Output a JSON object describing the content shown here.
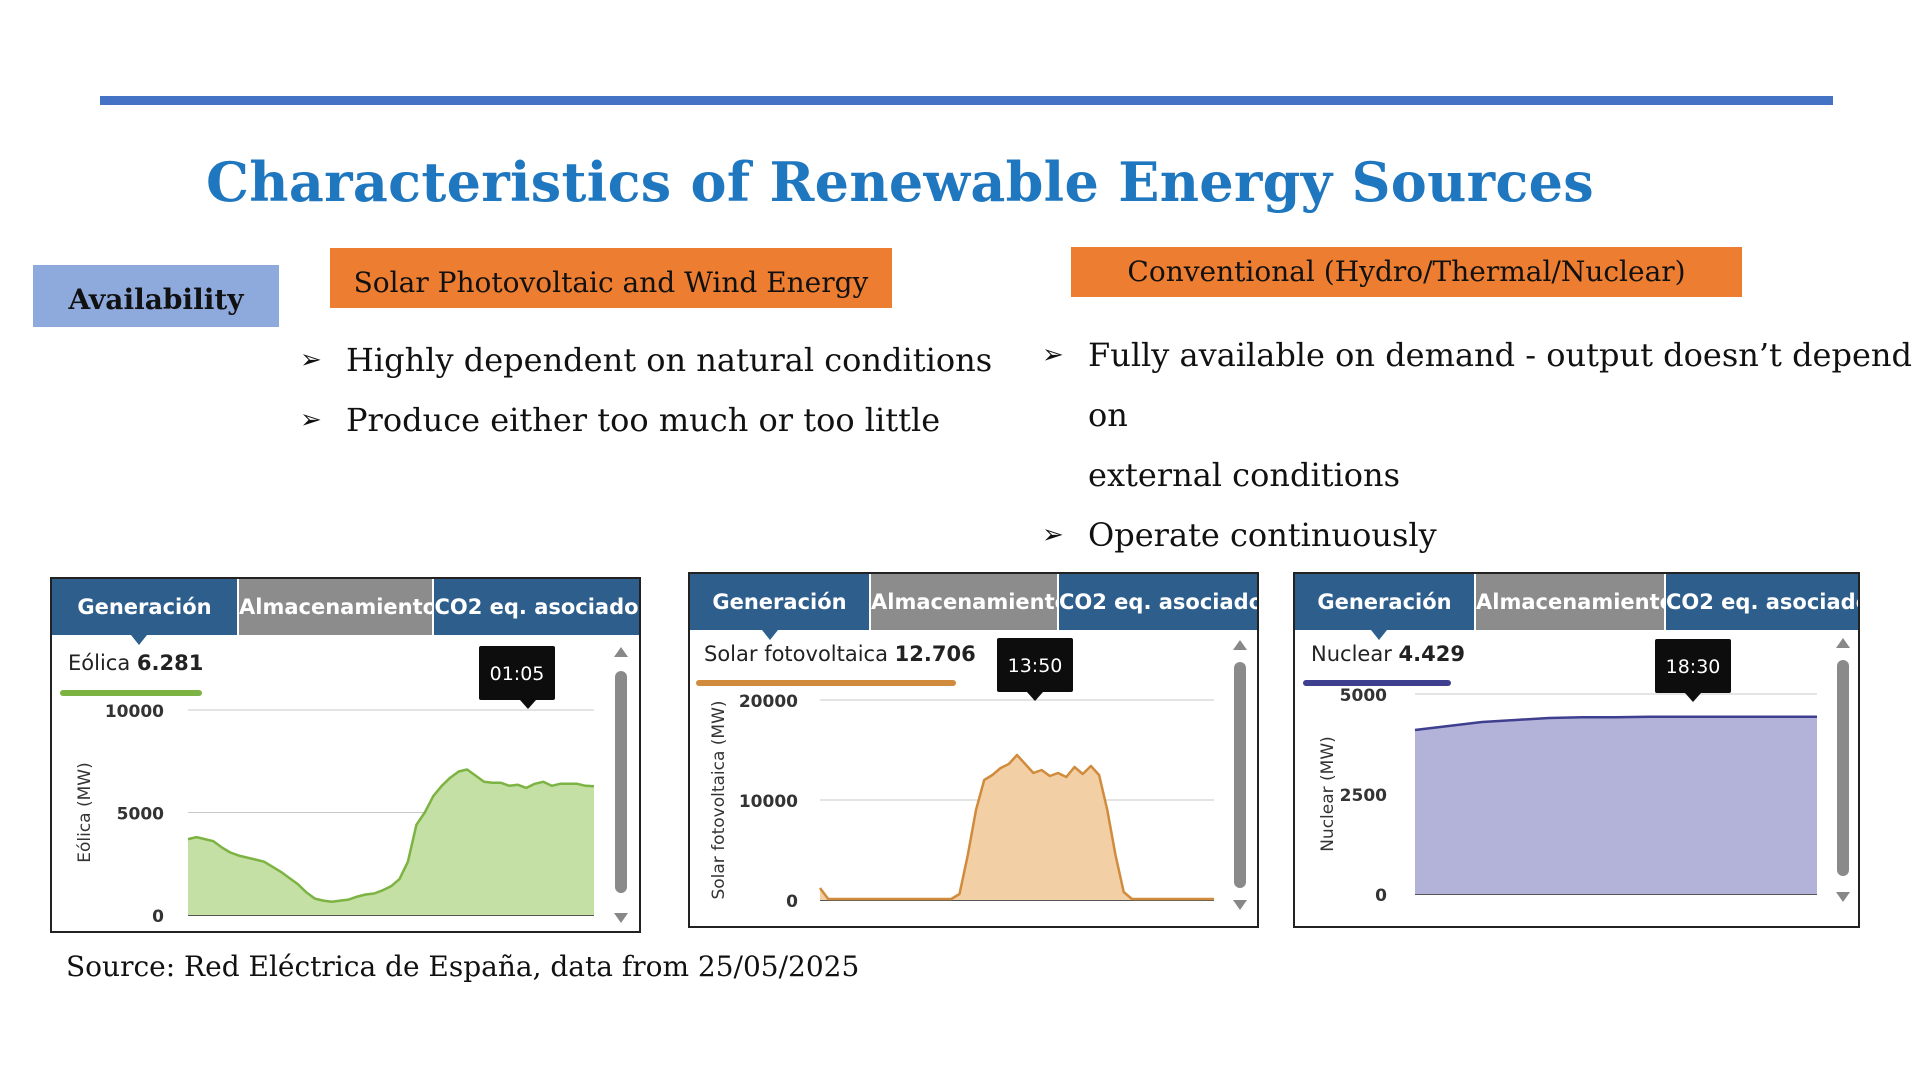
{
  "slide": {
    "title": "Characteristics of Renewable Energy Sources",
    "row_label": "Availability",
    "col1_header": "Solar Photovoltaic and Wind Energy",
    "col2_header": "Conventional (Hydro/Thermal/Nuclear)",
    "col1_bullets": [
      "Highly dependent on natural conditions",
      "Produce either too much or too little"
    ],
    "col2_bullets": [
      "Fully available on demand - output doesn’t depend on",
      "external conditions",
      "Operate continuously"
    ],
    "bullet_glyph": "➢",
    "source": "Source: Red Eléctrica de España, data from 25/05/2025",
    "colors": {
      "accent_bar": "#4472C4",
      "title": "#1F77C0",
      "label_box": "#8EA9DB",
      "header_box": "#ED7D31"
    }
  },
  "tabs": [
    "Generación",
    "Almacenamiento",
    "CO2 eq. asociado"
  ],
  "chart_data": [
    {
      "type": "area",
      "series_name": "Eólica",
      "readout_label": "Eólica",
      "readout_value": "6.281",
      "tooltip": "01:05",
      "ylabel": "Eólica (MW)",
      "xlabel": "",
      "ylim": [
        0,
        10000
      ],
      "yticks": [
        0,
        5000,
        10000
      ],
      "ytick_labels": [
        "0",
        "5000",
        "10000"
      ],
      "color": "#7CB342",
      "fill": "#C5E0A5",
      "x": [
        0,
        1,
        2,
        3,
        4,
        5,
        6,
        7,
        8,
        9,
        10,
        11,
        12,
        13,
        14,
        15,
        16,
        17,
        18,
        19,
        20,
        21,
        22,
        23,
        24,
        25,
        26,
        27,
        28,
        29,
        30,
        31,
        32,
        33,
        34,
        35,
        36,
        37,
        38,
        39,
        40,
        41,
        42,
        43,
        44,
        45,
        46,
        47,
        48
      ],
      "y": [
        3700,
        3800,
        3700,
        3600,
        3300,
        3050,
        2900,
        2800,
        2700,
        2600,
        2350,
        2100,
        1800,
        1500,
        1100,
        800,
        700,
        650,
        700,
        750,
        900,
        1000,
        1050,
        1200,
        1400,
        1750,
        2600,
        4400,
        5000,
        5800,
        6300,
        6700,
        7000,
        7100,
        6800,
        6500,
        6450,
        6450,
        6300,
        6350,
        6200,
        6400,
        6500,
        6300,
        6400,
        6400,
        6400,
        6300,
        6281
      ],
      "x_span": [
        0,
        48
      ]
    },
    {
      "type": "area",
      "series_name": "Solar fotovoltaica",
      "readout_label": "Solar fotovoltaica",
      "readout_value": "12.706",
      "tooltip": "13:50",
      "ylabel": "Solar fotovoltaica (MW)",
      "xlabel": "",
      "ylim": [
        0,
        20000
      ],
      "yticks": [
        0,
        10000,
        20000
      ],
      "ytick_labels": [
        "0",
        "10000",
        "20000"
      ],
      "color": "#D08C3C",
      "fill": "#F2CFA5",
      "x": [
        0,
        1,
        2,
        3,
        4,
        5,
        6,
        7,
        8,
        9,
        10,
        11,
        12,
        13,
        14,
        15,
        16,
        17,
        18,
        19,
        20,
        21,
        22,
        23,
        24,
        25,
        26,
        27,
        28,
        29,
        30,
        31,
        32,
        33,
        34,
        35,
        36,
        37,
        38,
        39,
        40,
        41,
        42,
        43,
        44,
        45,
        46,
        47,
        48
      ],
      "y": [
        1200,
        100,
        100,
        100,
        100,
        100,
        100,
        100,
        100,
        100,
        100,
        100,
        100,
        100,
        100,
        100,
        100,
        600,
        4500,
        9000,
        12000,
        12500,
        13200,
        13600,
        14500,
        13600,
        12700,
        13000,
        12400,
        12700,
        12300,
        13300,
        12600,
        13400,
        12500,
        9000,
        4500,
        800,
        100,
        100,
        100,
        100,
        100,
        100,
        100,
        100,
        100,
        100,
        100
      ],
      "x_span": [
        0,
        48
      ]
    },
    {
      "type": "area",
      "series_name": "Nuclear",
      "readout_label": "Nuclear",
      "readout_value": "4.429",
      "tooltip": "18:30",
      "ylabel": "Nuclear (MW)",
      "xlabel": "",
      "ylim": [
        0,
        5000
      ],
      "yticks": [
        0,
        2500,
        5000
      ],
      "ytick_labels": [
        "0",
        "2500",
        "5000"
      ],
      "color": "#3F3F8F",
      "fill": "#B3B3D9",
      "x": [
        0,
        4,
        8,
        12,
        16,
        20,
        24,
        28,
        32,
        36,
        40,
        44,
        48
      ],
      "y": [
        4100,
        4200,
        4300,
        4350,
        4400,
        4420,
        4420,
        4430,
        4430,
        4430,
        4429,
        4430,
        4429
      ],
      "x_span": [
        0,
        48
      ]
    }
  ]
}
